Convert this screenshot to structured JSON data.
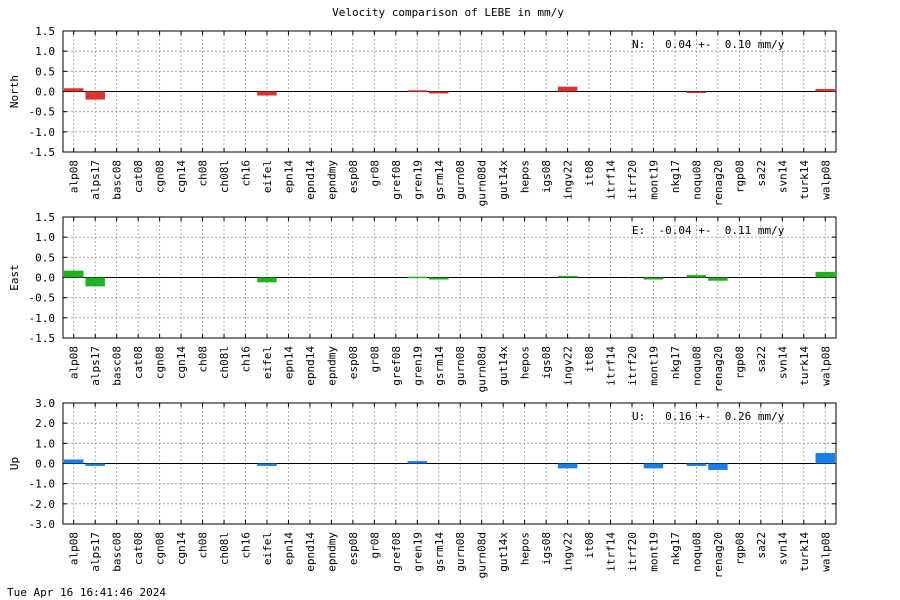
{
  "title": "Velocity comparison of LEBE in mm/y",
  "footer": "Tue Apr 16 16:41:46 2024",
  "chart_data": [
    {
      "type": "bar",
      "ylabel": "North",
      "ylim": [
        -1.5,
        1.5
      ],
      "yticks": [
        "1.5",
        "1.0",
        "0.5",
        "0.0",
        "-0.5",
        "-1.0",
        "-1.5"
      ],
      "summary": "N:   0.04 +-  0.10 mm/y",
      "color": "#e03030",
      "grid": true,
      "categories": [
        "alp08",
        "alps17",
        "basc08",
        "cat08",
        "cgn08",
        "cgn14",
        "ch08",
        "ch08l",
        "ch16",
        "eifel",
        "epn14",
        "epnd14",
        "epndmy",
        "esp08",
        "gr08",
        "gref08",
        "gren19",
        "gsrm14",
        "gurn08",
        "gurn08d",
        "gut14x",
        "hepos",
        "igs08",
        "ingv22",
        "it08",
        "itrf14",
        "itrf20",
        "mont19",
        "nkg17",
        "noqu08",
        "renag20",
        "rgp08",
        "sa22",
        "svn14",
        "turk14",
        "walp08"
      ],
      "values": [
        0.08,
        -0.2,
        0,
        0,
        0,
        0,
        0,
        0,
        0,
        -0.1,
        0,
        0,
        0,
        0,
        0,
        0,
        0.03,
        -0.05,
        0,
        0,
        0,
        0,
        0,
        0.12,
        0,
        0,
        0,
        0,
        0,
        -0.02,
        0,
        0,
        0,
        0,
        0,
        0.06
      ]
    },
    {
      "type": "bar",
      "ylabel": "East",
      "ylim": [
        -1.5,
        1.5
      ],
      "yticks": [
        "1.5",
        "1.0",
        "0.5",
        "0.0",
        "-0.5",
        "-1.0",
        "-1.5"
      ],
      "summary": "E:  -0.04 +-  0.11 mm/y",
      "color": "#20b020",
      "grid": true,
      "categories": [
        "alp08",
        "alps17",
        "basc08",
        "cat08",
        "cgn08",
        "cgn14",
        "ch08",
        "ch08l",
        "ch16",
        "eifel",
        "epn14",
        "epnd14",
        "epndmy",
        "esp08",
        "gr08",
        "gref08",
        "gren19",
        "gsrm14",
        "gurn08",
        "gurn08d",
        "gut14x",
        "hepos",
        "igs08",
        "ingv22",
        "it08",
        "itrf14",
        "itrf20",
        "mont19",
        "nkg17",
        "noqu08",
        "renag20",
        "rgp08",
        "sa22",
        "svn14",
        "turk14",
        "walp08"
      ],
      "values": [
        0.17,
        -0.22,
        0,
        0,
        0,
        0,
        0,
        0,
        0,
        -0.12,
        0,
        0,
        0,
        0,
        0,
        0,
        0.02,
        -0.05,
        0,
        0,
        0,
        0,
        0,
        0.04,
        0,
        0,
        0,
        -0.05,
        0,
        0.06,
        -0.08,
        0,
        0,
        0,
        0,
        0.14
      ]
    },
    {
      "type": "bar",
      "ylabel": "Up",
      "ylim": [
        -3.0,
        3.0
      ],
      "yticks": [
        "3.0",
        "2.0",
        "1.0",
        "0.0",
        "-1.0",
        "-2.0",
        "-3.0"
      ],
      "summary": "U:   0.16 +-  0.26 mm/y",
      "color": "#1a7ee8",
      "grid": true,
      "categories": [
        "alp08",
        "alps17",
        "basc08",
        "cat08",
        "cgn08",
        "cgn14",
        "ch08",
        "ch08l",
        "ch16",
        "eifel",
        "epn14",
        "epnd14",
        "epndmy",
        "esp08",
        "gr08",
        "gref08",
        "gren19",
        "gsrm14",
        "gurn08",
        "gurn08d",
        "gut14x",
        "hepos",
        "igs08",
        "ingv22",
        "it08",
        "itrf14",
        "itrf20",
        "mont19",
        "nkg17",
        "noqu08",
        "renag20",
        "rgp08",
        "sa22",
        "svn14",
        "turk14",
        "walp08"
      ],
      "values": [
        0.2,
        -0.12,
        0,
        0,
        0,
        0,
        0,
        0,
        0,
        -0.12,
        0,
        0,
        0,
        0,
        0,
        0,
        0.12,
        0,
        0,
        0,
        0,
        0,
        0,
        -0.24,
        0,
        0,
        0,
        -0.24,
        0,
        -0.12,
        -0.32,
        0,
        0,
        0,
        0,
        0.52
      ]
    }
  ]
}
